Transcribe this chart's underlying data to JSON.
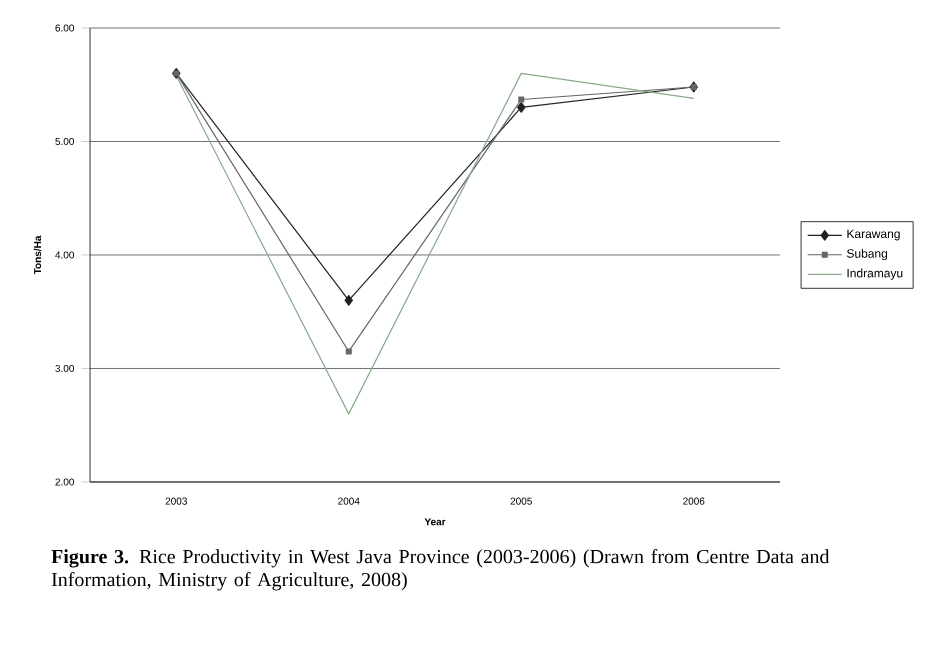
{
  "chart_data": {
    "type": "line",
    "title": "**Figure 3.** Rice Productivity in West Java Province (2003-2006) (Drawn from Centre Data and Information, Ministry of Agriculture, 2008)",
    "xlabel": "Year",
    "ylabel": "Tons/Ha",
    "categories": [
      "2003",
      "2004",
      "2005",
      "2006"
    ],
    "series": [
      {
        "name": "Karawang",
        "color": "#222222",
        "marker": "diamond",
        "values": [
          5.6,
          3.6,
          5.3,
          5.48
        ]
      },
      {
        "name": "Subang",
        "color": "#666666",
        "marker": "square",
        "values": [
          5.6,
          3.15,
          5.37,
          5.48
        ]
      },
      {
        "name": "Indramayu",
        "color": "#88aa88",
        "marker": "none",
        "values": [
          5.58,
          2.6,
          5.6,
          5.38
        ]
      }
    ],
    "ylim": [
      2,
      6
    ],
    "yticks": [
      {
        "value": 2,
        "label": "2.00"
      },
      {
        "value": 3,
        "label": "3.00"
      },
      {
        "value": 4,
        "label": "4.00"
      },
      {
        "value": 5,
        "label": "5.00"
      },
      {
        "value": 6,
        "label": "6.00"
      }
    ],
    "grid": "y",
    "legend": "right"
  }
}
